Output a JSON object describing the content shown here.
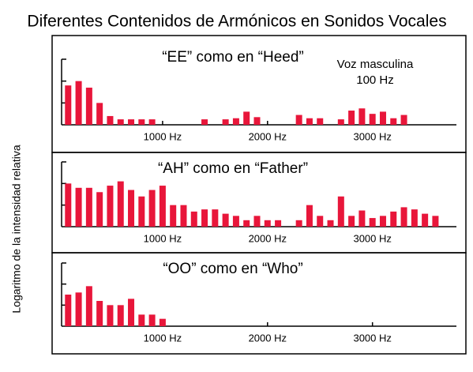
{
  "title": "Diferentes Contenidos de Armónicos en Sonidos Vocales",
  "y_label": "Logaritmo de la intensidad relativa",
  "chart_data": [
    {
      "type": "bar",
      "title": "“EE” como en “Heed”",
      "annotations": [
        "Voz masculina",
        "100 Hz"
      ],
      "color": "#e8163a",
      "x": [
        100,
        200,
        300,
        400,
        500,
        600,
        700,
        800,
        900,
        1400,
        1600,
        1700,
        1800,
        1900,
        2300,
        2400,
        2500,
        2700,
        2800,
        2900,
        3000,
        3100,
        3200,
        3300
      ],
      "values": [
        1.8,
        2.0,
        1.7,
        1.0,
        0.4,
        0.25,
        0.25,
        0.25,
        0.25,
        0.25,
        0.25,
        0.3,
        0.6,
        0.35,
        0.45,
        0.3,
        0.3,
        0.25,
        0.65,
        0.75,
        0.5,
        0.6,
        0.3,
        0.45
      ],
      "xlim": [
        0,
        3800
      ],
      "ylim": [
        0,
        3
      ],
      "yticks": [
        1,
        2,
        3
      ],
      "xticks": [
        {
          "value": 1000,
          "label": "1000 Hz"
        },
        {
          "value": 2000,
          "label": "2000 Hz"
        },
        {
          "value": 3000,
          "label": "3000 Hz"
        }
      ]
    },
    {
      "type": "bar",
      "title": "“AH” como en “Father”",
      "color": "#e8163a",
      "x": [
        100,
        200,
        300,
        400,
        500,
        600,
        700,
        800,
        900,
        1000,
        1100,
        1200,
        1300,
        1400,
        1500,
        1600,
        1700,
        1800,
        1900,
        2000,
        2100,
        2300,
        2400,
        2500,
        2600,
        2700,
        2800,
        2900,
        3000,
        3100,
        3200,
        3300,
        3400,
        3500,
        3600
      ],
      "values": [
        2.0,
        1.8,
        1.8,
        1.6,
        1.9,
        2.1,
        1.7,
        1.4,
        1.7,
        1.9,
        1.0,
        1.0,
        0.7,
        0.8,
        0.8,
        0.6,
        0.5,
        0.3,
        0.5,
        0.3,
        0.3,
        0.3,
        1.0,
        0.5,
        0.3,
        1.4,
        0.5,
        0.75,
        0.4,
        0.5,
        0.7,
        0.9,
        0.8,
        0.6,
        0.5
      ],
      "xlim": [
        0,
        3800
      ],
      "ylim": [
        0,
        3
      ],
      "yticks": [
        1,
        2,
        3
      ],
      "xticks": [
        {
          "value": 1000,
          "label": "1000 Hz"
        },
        {
          "value": 2000,
          "label": "2000 Hz"
        },
        {
          "value": 3000,
          "label": "3000 Hz"
        }
      ]
    },
    {
      "type": "bar",
      "title": "“OO” como en “Who”",
      "color": "#e8163a",
      "x": [
        100,
        200,
        300,
        400,
        500,
        600,
        700,
        800,
        900,
        1000
      ],
      "values": [
        1.5,
        1.6,
        1.9,
        1.2,
        1.0,
        1.0,
        1.3,
        0.55,
        0.55,
        0.35
      ],
      "xlim": [
        0,
        3800
      ],
      "ylim": [
        0,
        3
      ],
      "yticks": [
        1,
        2,
        3
      ],
      "xticks": [
        {
          "value": 1000,
          "label": "1000 Hz"
        },
        {
          "value": 2000,
          "label": "2000 Hz"
        },
        {
          "value": 3000,
          "label": "3000 Hz"
        }
      ]
    }
  ]
}
